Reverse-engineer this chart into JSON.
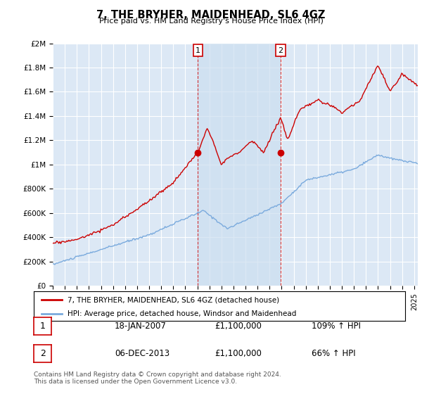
{
  "title": "7, THE BRYHER, MAIDENHEAD, SL6 4GZ",
  "subtitle": "Price paid vs. HM Land Registry's House Price Index (HPI)",
  "ylabel_ticks": [
    "£0",
    "£200K",
    "£400K",
    "£600K",
    "£800K",
    "£1M",
    "£1.2M",
    "£1.4M",
    "£1.6M",
    "£1.8M",
    "£2M"
  ],
  "ytick_values": [
    0,
    200000,
    400000,
    600000,
    800000,
    1000000,
    1200000,
    1400000,
    1600000,
    1800000,
    2000000
  ],
  "ylim": [
    0,
    2000000
  ],
  "xlim_start": 1995.0,
  "xlim_end": 2025.3,
  "background_color": "#dce8f5",
  "plot_bg_color": "#dce8f5",
  "red_line_color": "#cc0000",
  "blue_line_color": "#7aaadd",
  "marker_color": "#cc0000",
  "annotation_box_color": "#cc0000",
  "shade_color": "#c8dff5",
  "grid_color": "#ffffff",
  "transaction1": {
    "date": "18-JAN-2007",
    "price": 1100000,
    "pct": "109%",
    "label": "1",
    "x": 2007.05
  },
  "transaction2": {
    "date": "06-DEC-2013",
    "price": 1100000,
    "pct": "66%",
    "label": "2",
    "x": 2013.92
  },
  "legend1": "7, THE BRYHER, MAIDENHEAD, SL6 4GZ (detached house)",
  "legend2": "HPI: Average price, detached house, Windsor and Maidenhead",
  "footer": "Contains HM Land Registry data © Crown copyright and database right 2024.\nThis data is licensed under the Open Government Licence v3.0.",
  "table_rows": [
    [
      "1",
      "18-JAN-2007",
      "£1,100,000",
      "109% ↑ HPI"
    ],
    [
      "2",
      "06-DEC-2013",
      "£1,100,000",
      "66% ↑ HPI"
    ]
  ]
}
